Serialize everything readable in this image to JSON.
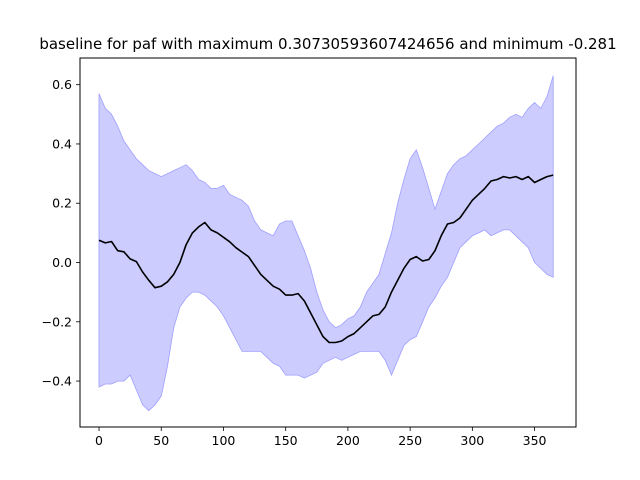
{
  "chart_data": {
    "type": "line",
    "title": "baseline for paf with maximum 0.30730593607424656 and minimum -0.281",
    "xlabel": "",
    "ylabel": "",
    "xlim": [
      -15.3,
      383.3
    ],
    "ylim": [
      -0.555,
      0.69
    ],
    "xticks": [
      0,
      50,
      100,
      150,
      200,
      250,
      300,
      350
    ],
    "yticks": [
      -0.4,
      -0.2,
      0.0,
      0.2,
      0.4,
      0.6
    ],
    "ytick_labels": [
      "−0.4",
      "−0.2",
      "0.0",
      "0.2",
      "0.4",
      "0.6"
    ],
    "grid": false,
    "legend": "none",
    "colors": {
      "mean_line": "#000000",
      "band_fill": "#ccccff",
      "band_edge": "#9f9fff"
    },
    "series": [
      {
        "kind": "line",
        "x": [
          0,
          5,
          10,
          15,
          20,
          25,
          30,
          35,
          40,
          45,
          50,
          55,
          60,
          65,
          70,
          75,
          80,
          85,
          90,
          95,
          100,
          105,
          110,
          115,
          120,
          125,
          130,
          135,
          140,
          145,
          150,
          155,
          160,
          165,
          170,
          175,
          180,
          185,
          190,
          195,
          200,
          205,
          210,
          215,
          220,
          225,
          230,
          235,
          240,
          245,
          250,
          255,
          260,
          265,
          270,
          275,
          280,
          285,
          290,
          295,
          300,
          305,
          310,
          315,
          320,
          325,
          330,
          335,
          340,
          345,
          350,
          355,
          360,
          365
        ],
        "y": [
          0.075,
          0.066,
          0.071,
          0.04,
          0.036,
          0.012,
          0.003,
          -0.032,
          -0.06,
          -0.085,
          -0.08,
          -0.065,
          -0.04,
          0.0,
          0.06,
          0.1,
          0.12,
          0.135,
          0.11,
          0.1,
          0.085,
          0.07,
          0.05,
          0.035,
          0.02,
          -0.01,
          -0.04,
          -0.06,
          -0.08,
          -0.09,
          -0.11,
          -0.11,
          -0.105,
          -0.13,
          -0.17,
          -0.21,
          -0.25,
          -0.27,
          -0.27,
          -0.265,
          -0.25,
          -0.24,
          -0.22,
          -0.2,
          -0.18,
          -0.175,
          -0.15,
          -0.1,
          -0.06,
          -0.02,
          0.01,
          0.02,
          0.005,
          0.01,
          0.04,
          0.09,
          0.13,
          0.135,
          0.15,
          0.18,
          0.21,
          0.23,
          0.25,
          0.275,
          0.28,
          0.29,
          0.285,
          0.29,
          0.28,
          0.29,
          0.27,
          0.28,
          0.29,
          0.295
        ]
      },
      {
        "kind": "band",
        "x": [
          0,
          5,
          10,
          15,
          20,
          25,
          30,
          35,
          40,
          45,
          50,
          55,
          60,
          65,
          70,
          75,
          80,
          85,
          90,
          95,
          100,
          105,
          110,
          115,
          120,
          125,
          130,
          135,
          140,
          145,
          150,
          155,
          160,
          165,
          170,
          175,
          180,
          185,
          190,
          195,
          200,
          205,
          210,
          215,
          220,
          225,
          230,
          235,
          240,
          245,
          250,
          255,
          260,
          265,
          270,
          275,
          280,
          285,
          290,
          295,
          300,
          305,
          310,
          315,
          320,
          325,
          330,
          335,
          340,
          345,
          350,
          355,
          360,
          365
        ],
        "upper": [
          0.57,
          0.52,
          0.5,
          0.46,
          0.41,
          0.38,
          0.35,
          0.33,
          0.31,
          0.3,
          0.29,
          0.3,
          0.31,
          0.32,
          0.33,
          0.31,
          0.28,
          0.27,
          0.25,
          0.25,
          0.26,
          0.23,
          0.22,
          0.21,
          0.19,
          0.14,
          0.11,
          0.1,
          0.09,
          0.13,
          0.14,
          0.14,
          0.09,
          0.04,
          -0.02,
          -0.1,
          -0.16,
          -0.2,
          -0.22,
          -0.21,
          -0.19,
          -0.18,
          -0.15,
          -0.1,
          -0.07,
          -0.04,
          0.03,
          0.1,
          0.2,
          0.28,
          0.35,
          0.38,
          0.32,
          0.25,
          0.18,
          0.24,
          0.3,
          0.33,
          0.35,
          0.36,
          0.38,
          0.4,
          0.42,
          0.44,
          0.46,
          0.47,
          0.49,
          0.5,
          0.49,
          0.52,
          0.54,
          0.52,
          0.56,
          0.63
        ]
      },
      {
        "kind": "band",
        "x": [
          0,
          5,
          10,
          15,
          20,
          25,
          30,
          35,
          40,
          45,
          50,
          55,
          60,
          65,
          70,
          75,
          80,
          85,
          90,
          95,
          100,
          105,
          110,
          115,
          120,
          125,
          130,
          135,
          140,
          145,
          150,
          155,
          160,
          165,
          170,
          175,
          180,
          185,
          190,
          195,
          200,
          205,
          210,
          215,
          220,
          225,
          230,
          235,
          240,
          245,
          250,
          255,
          260,
          265,
          270,
          275,
          280,
          285,
          290,
          295,
          300,
          305,
          310,
          315,
          320,
          325,
          330,
          335,
          340,
          345,
          350,
          355,
          360,
          365
        ],
        "lower": [
          -0.42,
          -0.41,
          -0.41,
          -0.4,
          -0.4,
          -0.38,
          -0.43,
          -0.48,
          -0.5,
          -0.48,
          -0.45,
          -0.35,
          -0.22,
          -0.15,
          -0.12,
          -0.1,
          -0.1,
          -0.11,
          -0.13,
          -0.15,
          -0.18,
          -0.22,
          -0.26,
          -0.3,
          -0.3,
          -0.3,
          -0.3,
          -0.32,
          -0.34,
          -0.35,
          -0.38,
          -0.38,
          -0.38,
          -0.39,
          -0.38,
          -0.37,
          -0.34,
          -0.33,
          -0.32,
          -0.33,
          -0.32,
          -0.31,
          -0.3,
          -0.3,
          -0.3,
          -0.3,
          -0.33,
          -0.38,
          -0.33,
          -0.28,
          -0.26,
          -0.25,
          -0.2,
          -0.15,
          -0.12,
          -0.08,
          -0.05,
          0.0,
          0.05,
          0.07,
          0.09,
          0.1,
          0.11,
          0.09,
          0.1,
          0.11,
          0.11,
          0.09,
          0.07,
          0.05,
          0.0,
          -0.02,
          -0.04,
          -0.05
        ]
      }
    ]
  }
}
